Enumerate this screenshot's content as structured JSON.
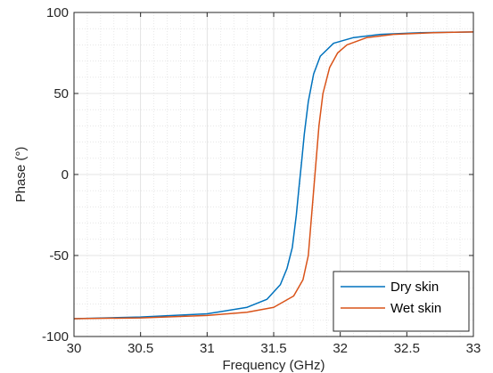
{
  "chart_data": {
    "type": "line",
    "xlabel": "Frequency (GHz)",
    "ylabel": "Phase (°)",
    "xlim": [
      30,
      33
    ],
    "ylim": [
      -100,
      100
    ],
    "x_ticks": [
      30,
      30.5,
      31,
      31.5,
      32,
      32.5,
      33
    ],
    "x_tick_labels": [
      "30",
      "30.5",
      "31",
      "31.5",
      "32",
      "32.5",
      "33"
    ],
    "y_ticks": [
      -100,
      -50,
      0,
      50,
      100
    ],
    "y_tick_labels": [
      "-100",
      "-50",
      "0",
      "50",
      "100"
    ],
    "grid": true,
    "minor_grid": true,
    "legend_position": "bottom-right",
    "series": [
      {
        "name": "Dry skin",
        "color": "#0072BD",
        "x": [
          30.0,
          30.5,
          31.0,
          31.3,
          31.45,
          31.55,
          31.6,
          31.64,
          31.67,
          31.69,
          31.7,
          31.71,
          31.73,
          31.76,
          31.8,
          31.85,
          31.95,
          32.1,
          32.3,
          32.6,
          33.0
        ],
        "y": [
          -89,
          -88,
          -86,
          -82,
          -77,
          -68,
          -58,
          -45,
          -25,
          -8,
          0,
          8,
          25,
          45,
          62,
          73,
          81,
          84.5,
          86.5,
          87.5,
          88
        ]
      },
      {
        "name": "Wet skin",
        "color": "#D95319",
        "x": [
          30.0,
          30.5,
          31.0,
          31.3,
          31.5,
          31.65,
          31.72,
          31.76,
          31.78,
          31.8,
          31.81,
          31.82,
          31.84,
          31.87,
          31.92,
          31.98,
          32.05,
          32.2,
          32.4,
          32.7,
          33.0
        ],
        "y": [
          -89,
          -88.5,
          -87,
          -85,
          -82,
          -75,
          -65,
          -50,
          -30,
          -10,
          0,
          10,
          30,
          50,
          66,
          75,
          80,
          84.5,
          86.5,
          87.5,
          88
        ]
      }
    ]
  }
}
